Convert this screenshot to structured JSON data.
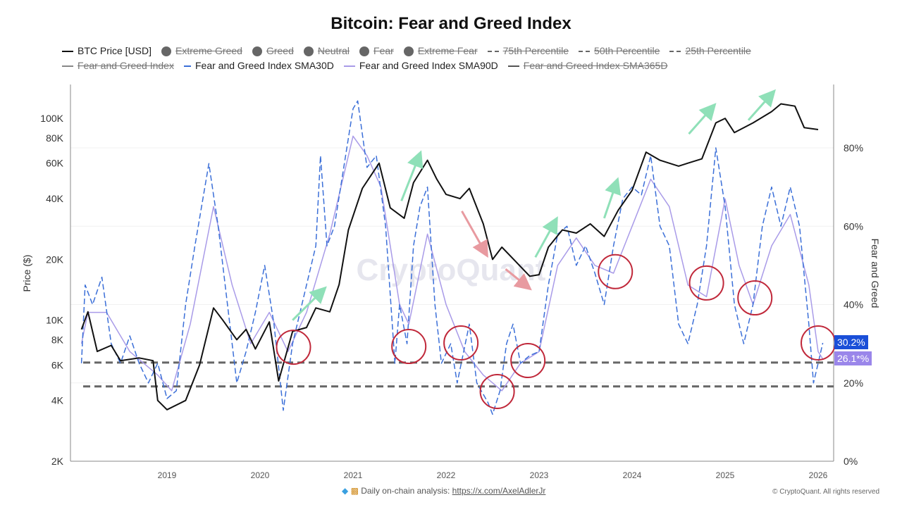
{
  "chart_data": {
    "type": "line",
    "title": "Bitcoin: Fear and Greed Index",
    "ylabel_left": "Price ($)",
    "ylabel_right": "Fear and Greed",
    "left_axis": {
      "scale": "log",
      "range": [
        2000,
        150000
      ],
      "ticks": [
        2000,
        4000,
        6000,
        8000,
        10000,
        20000,
        40000,
        60000,
        80000,
        100000
      ],
      "tick_labels": [
        "2K",
        "4K",
        "6K",
        "8K",
        "10K",
        "20K",
        "40K",
        "60K",
        "80K",
        "100K"
      ]
    },
    "right_axis": {
      "range": [
        0,
        96
      ],
      "ticks": [
        0,
        20,
        40,
        60,
        80
      ],
      "tick_labels": [
        "0%",
        "20%",
        "40%",
        "60%",
        "80%"
      ]
    },
    "x_axis": {
      "range": [
        2018.08,
        2026.12
      ],
      "ticks": [
        2019,
        2020,
        2021,
        2022,
        2023,
        2024,
        2025,
        2026
      ],
      "tick_labels": [
        "2019",
        "2020",
        "2021",
        "2022",
        "2023",
        "2024",
        "2025",
        "2026"
      ]
    },
    "legend": [
      {
        "name": "BTC Price [USD]",
        "style": "line",
        "color": "#111111",
        "enabled": true
      },
      {
        "name": "Extreme Greed",
        "style": "dot",
        "enabled": false
      },
      {
        "name": "Greed",
        "style": "dot",
        "enabled": false
      },
      {
        "name": "Neutral",
        "style": "dot",
        "enabled": false
      },
      {
        "name": "Fear",
        "style": "dot",
        "enabled": false
      },
      {
        "name": "Extreme Fear",
        "style": "dot",
        "enabled": false
      },
      {
        "name": "75th Percentile",
        "style": "dash",
        "enabled": false
      },
      {
        "name": "50th Percentile",
        "style": "dash",
        "enabled": false
      },
      {
        "name": "25th Percentile",
        "style": "dash",
        "enabled": false
      },
      {
        "name": "Fear and Greed Index",
        "style": "line",
        "color": "#888888",
        "enabled": false
      },
      {
        "name": "Fear and Greed Index SMA30D",
        "style": "line",
        "color": "#3b6fd8",
        "enabled": true
      },
      {
        "name": "Fear and Greed Index SMA90D",
        "style": "line",
        "color": "#a99be8",
        "enabled": true
      },
      {
        "name": "Fear and Greed Index SMA365D",
        "style": "line",
        "color": "#555555",
        "enabled": false
      }
    ],
    "series": [
      {
        "name": "BTC Price [USD]",
        "axis": "left",
        "color": "#111111",
        "points": [
          [
            2018.08,
            9000
          ],
          [
            2018.15,
            11000
          ],
          [
            2018.25,
            7000
          ],
          [
            2018.4,
            7500
          ],
          [
            2018.5,
            6300
          ],
          [
            2018.7,
            6500
          ],
          [
            2018.85,
            6300
          ],
          [
            2018.9,
            4000
          ],
          [
            2019.0,
            3600
          ],
          [
            2019.2,
            4000
          ],
          [
            2019.35,
            6000
          ],
          [
            2019.5,
            11500
          ],
          [
            2019.6,
            10000
          ],
          [
            2019.75,
            8000
          ],
          [
            2019.85,
            9000
          ],
          [
            2019.95,
            7200
          ],
          [
            2020.1,
            9800
          ],
          [
            2020.2,
            5000
          ],
          [
            2020.35,
            8800
          ],
          [
            2020.5,
            9200
          ],
          [
            2020.6,
            11500
          ],
          [
            2020.75,
            11000
          ],
          [
            2020.85,
            15000
          ],
          [
            2020.95,
            28000
          ],
          [
            2021.1,
            45000
          ],
          [
            2021.28,
            60000
          ],
          [
            2021.4,
            36000
          ],
          [
            2021.55,
            32000
          ],
          [
            2021.65,
            48000
          ],
          [
            2021.8,
            62000
          ],
          [
            2021.9,
            50000
          ],
          [
            2022.0,
            42000
          ],
          [
            2022.15,
            40000
          ],
          [
            2022.25,
            45000
          ],
          [
            2022.4,
            30000
          ],
          [
            2022.5,
            20000
          ],
          [
            2022.6,
            23000
          ],
          [
            2022.75,
            19500
          ],
          [
            2022.9,
            16500
          ],
          [
            2023.0,
            16800
          ],
          [
            2023.1,
            23000
          ],
          [
            2023.25,
            28000
          ],
          [
            2023.4,
            27000
          ],
          [
            2023.55,
            30000
          ],
          [
            2023.7,
            26000
          ],
          [
            2023.85,
            35000
          ],
          [
            2024.0,
            44000
          ],
          [
            2024.15,
            68000
          ],
          [
            2024.3,
            62000
          ],
          [
            2024.5,
            58000
          ],
          [
            2024.6,
            60000
          ],
          [
            2024.75,
            63000
          ],
          [
            2024.9,
            95000
          ],
          [
            2025.0,
            100000
          ],
          [
            2025.1,
            85000
          ],
          [
            2025.3,
            95000
          ],
          [
            2025.5,
            108000
          ],
          [
            2025.6,
            118000
          ],
          [
            2025.75,
            115000
          ],
          [
            2025.85,
            90000
          ],
          [
            2026.0,
            88000
          ]
        ]
      },
      {
        "name": "Fear and Greed Index SMA30D",
        "axis": "right",
        "color": "#3b6fd8",
        "dashed": true,
        "points": [
          [
            2018.08,
            25
          ],
          [
            2018.12,
            45
          ],
          [
            2018.2,
            40
          ],
          [
            2018.3,
            47
          ],
          [
            2018.4,
            30
          ],
          [
            2018.5,
            25
          ],
          [
            2018.6,
            32
          ],
          [
            2018.7,
            25
          ],
          [
            2018.8,
            20
          ],
          [
            2018.9,
            25
          ],
          [
            2019.0,
            16
          ],
          [
            2019.1,
            18
          ],
          [
            2019.2,
            40
          ],
          [
            2019.3,
            55
          ],
          [
            2019.45,
            76
          ],
          [
            2019.55,
            60
          ],
          [
            2019.65,
            40
          ],
          [
            2019.75,
            20
          ],
          [
            2019.85,
            28
          ],
          [
            2019.95,
            38
          ],
          [
            2020.05,
            50
          ],
          [
            2020.15,
            35
          ],
          [
            2020.25,
            13
          ],
          [
            2020.35,
            30
          ],
          [
            2020.5,
            45
          ],
          [
            2020.6,
            55
          ],
          [
            2020.65,
            78
          ],
          [
            2020.72,
            55
          ],
          [
            2020.8,
            60
          ],
          [
            2020.9,
            75
          ],
          [
            2021.0,
            90
          ],
          [
            2021.05,
            92
          ],
          [
            2021.15,
            75
          ],
          [
            2021.25,
            78
          ],
          [
            2021.35,
            60
          ],
          [
            2021.45,
            25
          ],
          [
            2021.5,
            40
          ],
          [
            2021.58,
            30
          ],
          [
            2021.65,
            55
          ],
          [
            2021.72,
            65
          ],
          [
            2021.8,
            70
          ],
          [
            2021.88,
            40
          ],
          [
            2021.95,
            25
          ],
          [
            2022.05,
            30
          ],
          [
            2022.12,
            20
          ],
          [
            2022.25,
            35
          ],
          [
            2022.33,
            20
          ],
          [
            2022.45,
            15
          ],
          [
            2022.5,
            12
          ],
          [
            2022.58,
            18
          ],
          [
            2022.65,
            30
          ],
          [
            2022.72,
            35
          ],
          [
            2022.8,
            25
          ],
          [
            2022.9,
            27
          ],
          [
            2023.0,
            28
          ],
          [
            2023.1,
            45
          ],
          [
            2023.2,
            58
          ],
          [
            2023.3,
            60
          ],
          [
            2023.4,
            50
          ],
          [
            2023.5,
            55
          ],
          [
            2023.6,
            48
          ],
          [
            2023.7,
            40
          ],
          [
            2023.8,
            55
          ],
          [
            2023.9,
            67
          ],
          [
            2024.0,
            70
          ],
          [
            2024.1,
            68
          ],
          [
            2024.2,
            78
          ],
          [
            2024.3,
            60
          ],
          [
            2024.4,
            55
          ],
          [
            2024.5,
            35
          ],
          [
            2024.6,
            30
          ],
          [
            2024.7,
            40
          ],
          [
            2024.8,
            55
          ],
          [
            2024.9,
            80
          ],
          [
            2025.0,
            65
          ],
          [
            2025.1,
            40
          ],
          [
            2025.2,
            30
          ],
          [
            2025.3,
            40
          ],
          [
            2025.4,
            60
          ],
          [
            2025.5,
            70
          ],
          [
            2025.6,
            60
          ],
          [
            2025.7,
            70
          ],
          [
            2025.8,
            60
          ],
          [
            2025.9,
            35
          ],
          [
            2025.95,
            20
          ],
          [
            2026.0,
            25
          ],
          [
            2026.05,
            30.2
          ]
        ]
      },
      {
        "name": "Fear and Greed Index SMA90D",
        "axis": "right",
        "color": "#a99be8",
        "points": [
          [
            2018.08,
            30
          ],
          [
            2018.15,
            38
          ],
          [
            2018.35,
            38
          ],
          [
            2018.6,
            28
          ],
          [
            2018.9,
            22
          ],
          [
            2019.05,
            18
          ],
          [
            2019.25,
            35
          ],
          [
            2019.5,
            65
          ],
          [
            2019.7,
            45
          ],
          [
            2019.9,
            30
          ],
          [
            2020.1,
            38
          ],
          [
            2020.3,
            28
          ],
          [
            2020.5,
            38
          ],
          [
            2020.75,
            58
          ],
          [
            2021.0,
            83
          ],
          [
            2021.15,
            78
          ],
          [
            2021.3,
            70
          ],
          [
            2021.5,
            40
          ],
          [
            2021.6,
            35
          ],
          [
            2021.8,
            58
          ],
          [
            2022.0,
            40
          ],
          [
            2022.2,
            28
          ],
          [
            2022.4,
            22
          ],
          [
            2022.6,
            18
          ],
          [
            2022.8,
            25
          ],
          [
            2023.0,
            28
          ],
          [
            2023.2,
            50
          ],
          [
            2023.4,
            57
          ],
          [
            2023.6,
            50
          ],
          [
            2023.8,
            48
          ],
          [
            2024.0,
            60
          ],
          [
            2024.2,
            72
          ],
          [
            2024.4,
            65
          ],
          [
            2024.6,
            45
          ],
          [
            2024.8,
            42
          ],
          [
            2025.0,
            67
          ],
          [
            2025.15,
            50
          ],
          [
            2025.3,
            40
          ],
          [
            2025.5,
            55
          ],
          [
            2025.7,
            63
          ],
          [
            2025.9,
            45
          ],
          [
            2026.0,
            28
          ],
          [
            2026.05,
            26.1
          ]
        ]
      }
    ],
    "reference_lines_right": [
      25.2,
      19.1
    ],
    "last_values": [
      {
        "label": "30.2%",
        "color": "#1a4fd8"
      },
      {
        "label": "26.1*%",
        "color": "#9a86ea"
      }
    ],
    "annotations": {
      "circles": [
        [
          2020.36,
          29.1
        ],
        [
          2021.6,
          29.3
        ],
        [
          2022.16,
          30.2
        ],
        [
          2022.55,
          17.8
        ],
        [
          2022.88,
          25.7
        ],
        [
          2023.82,
          48.4
        ],
        [
          2024.8,
          45.5
        ],
        [
          2025.32,
          41.7
        ],
        [
          2026.0,
          30.2
        ]
      ],
      "up_arrows": [
        [
          [
            2020.35,
            10000
          ],
          [
            2020.67,
            14000
          ]
        ],
        [
          [
            2021.52,
            39000
          ],
          [
            2021.71,
            65000
          ]
        ],
        [
          [
            2022.96,
            20500
          ],
          [
            2023.17,
            30700
          ]
        ],
        [
          [
            2023.7,
            32000
          ],
          [
            2023.83,
            47800
          ]
        ],
        [
          [
            2024.61,
            83800
          ],
          [
            2024.86,
            113000
          ]
        ],
        [
          [
            2025.25,
            98000
          ],
          [
            2025.5,
            132000
          ]
        ]
      ],
      "down_arrows": [
        [
          [
            2022.17,
            34700
          ],
          [
            2022.42,
            21700
          ]
        ],
        [
          [
            2022.64,
            17900
          ],
          [
            2022.87,
            14700
          ]
        ]
      ]
    },
    "watermark": "CryptoQuant",
    "grid": true
  },
  "footer": {
    "text": "Daily on-chain analysis: ",
    "link": "https://x.com/AxelAdlerJr",
    "icons": [
      "diamond-icon",
      "person-icon"
    ],
    "copyright": "© CryptoQuant. All rights reserved"
  }
}
